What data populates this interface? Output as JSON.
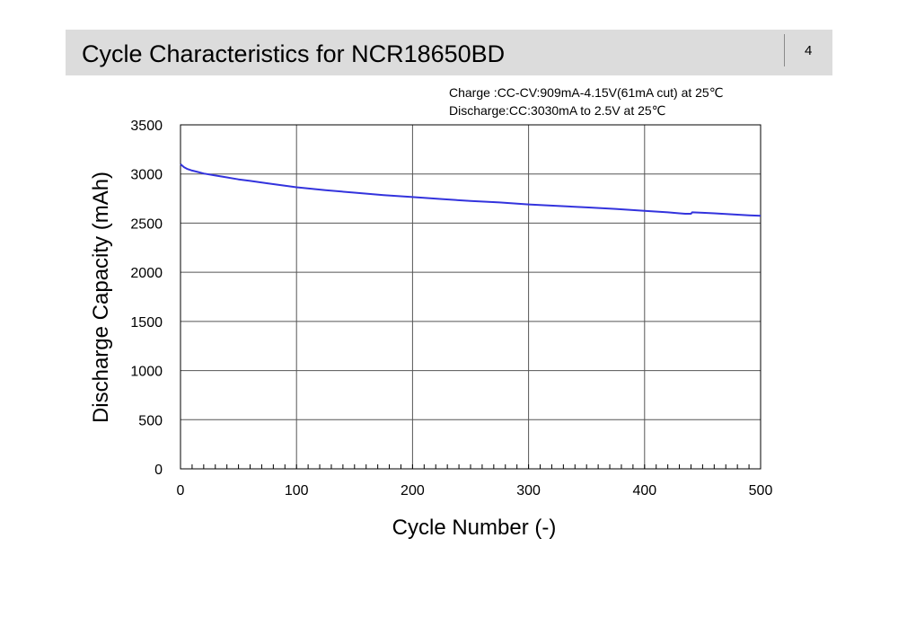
{
  "slide": {
    "title": "Cycle Characteristics for NCR18650BD",
    "page_number": "4"
  },
  "conditions": {
    "charge": "Charge :CC-CV:909mA-4.15V(61mA cut) at 25℃",
    "discharge": "Discharge:CC:3030mA to 2.5V at 25℃"
  },
  "chart_data": {
    "type": "line",
    "xlabel": "Cycle Number (-)",
    "ylabel": "Discharge Capacity (mAh)",
    "xlim": [
      0,
      500
    ],
    "ylim": [
      0,
      3500
    ],
    "xticks": [
      0,
      100,
      200,
      300,
      400,
      500
    ],
    "yticks": [
      0,
      500,
      1000,
      1500,
      2000,
      2500,
      3000,
      3500
    ],
    "grid": true,
    "series": [
      {
        "color": "#3333dd",
        "x": [
          0,
          3,
          6,
          10,
          15,
          20,
          30,
          40,
          50,
          60,
          75,
          100,
          125,
          150,
          175,
          200,
          225,
          250,
          275,
          300,
          325,
          350,
          375,
          400,
          420,
          430,
          435,
          440,
          441,
          450,
          460,
          475,
          490,
          500
        ],
        "y": [
          3100,
          3070,
          3050,
          3035,
          3020,
          3005,
          2985,
          2965,
          2945,
          2930,
          2905,
          2865,
          2835,
          2810,
          2785,
          2765,
          2745,
          2725,
          2710,
          2690,
          2675,
          2660,
          2645,
          2625,
          2610,
          2600,
          2595,
          2595,
          2610,
          2605,
          2600,
          2590,
          2580,
          2575
        ]
      }
    ]
  }
}
